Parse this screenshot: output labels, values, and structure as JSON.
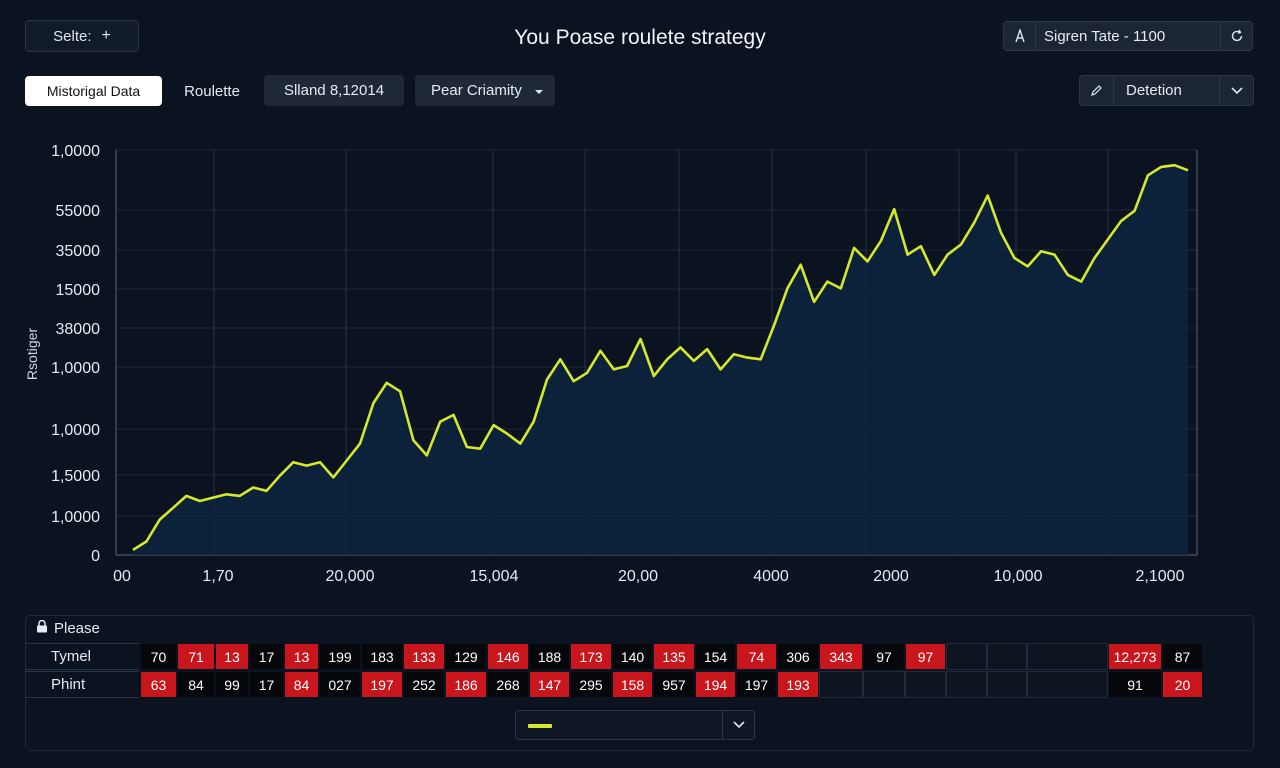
{
  "header": {
    "select_label": "Selte:",
    "select_icon": "plus-icon",
    "title": "You Poase roulete strategy",
    "right_label": "Sigren Tate - 1100",
    "right_left_icon": "a-icon",
    "right_right_icon": "refresh-icon"
  },
  "toolbar": {
    "tab_historical": "Mistorigal Data",
    "tab_roulette": "Roulette",
    "sland_button": "Slland 8,12014",
    "pear_dropdown": "Pear Criamity",
    "detetion_dropdown": "Detetion",
    "detetion_icon": "pencil-icon"
  },
  "chart_data": {
    "type": "area",
    "ylabel": "Rsotiger",
    "y_tick_labels": [
      "1,0000",
      "55000",
      "35000",
      "15000",
      "38000",
      "1,0000",
      "1,0000",
      "1,5000",
      "1,0000",
      "0"
    ],
    "x_tick_labels": [
      "00",
      "1,70",
      "20,000",
      "15,004",
      "20,00",
      "4000",
      "2000",
      "10,000",
      "2,1000"
    ],
    "grid": true,
    "line_color": "#d5e82a",
    "fill_color": "#0d2440",
    "series": [
      {
        "values": [
          3,
          8,
          21,
          28,
          35,
          32,
          34,
          36,
          35,
          40,
          38,
          47,
          55,
          53,
          55,
          46,
          56,
          66,
          90,
          102,
          97,
          68,
          59,
          79,
          83,
          64,
          63,
          77,
          72,
          66,
          79,
          104,
          116,
          103,
          108,
          121,
          110,
          112,
          128,
          106,
          116,
          123,
          115,
          122,
          110,
          119,
          117,
          116,
          136,
          158,
          172,
          150,
          162,
          158,
          182,
          174,
          186,
          205,
          178,
          183,
          166,
          178,
          184,
          197,
          213,
          191,
          176,
          171,
          180,
          178,
          166,
          162,
          176,
          187,
          198,
          204,
          225,
          230,
          231,
          228
        ]
      }
    ]
  },
  "panel": {
    "title": "Please",
    "title_icon": "lock-icon",
    "rows": [
      {
        "label": "Tymel",
        "cells": [
          {
            "v": "70",
            "c": "black"
          },
          {
            "v": "71",
            "c": "red"
          },
          {
            "v": "13",
            "c": "red"
          },
          {
            "v": "17",
            "c": "black"
          },
          {
            "v": "13",
            "c": "red"
          },
          {
            "v": "199",
            "c": "black"
          },
          {
            "v": "183",
            "c": "black"
          },
          {
            "v": "133",
            "c": "red"
          },
          {
            "v": "129",
            "c": "black"
          },
          {
            "v": "146",
            "c": "red"
          },
          {
            "v": "188",
            "c": "black"
          },
          {
            "v": "173",
            "c": "red"
          },
          {
            "v": "140",
            "c": "black"
          },
          {
            "v": "135",
            "c": "red"
          },
          {
            "v": "154",
            "c": "black"
          },
          {
            "v": "74",
            "c": "red"
          },
          {
            "v": "306",
            "c": "black"
          },
          {
            "v": "343",
            "c": "red"
          },
          {
            "v": "97",
            "c": "black"
          },
          {
            "v": "97",
            "c": "red"
          },
          {
            "v": "",
            "c": "empty"
          },
          {
            "v": "",
            "c": "empty"
          },
          {
            "v": "",
            "c": "empty"
          },
          {
            "v": "12,273",
            "c": "red"
          },
          {
            "v": "87",
            "c": "black"
          }
        ]
      },
      {
        "label": "Phint",
        "cells": [
          {
            "v": "63",
            "c": "red"
          },
          {
            "v": "84",
            "c": "black"
          },
          {
            "v": "99",
            "c": "black"
          },
          {
            "v": "17",
            "c": "black"
          },
          {
            "v": "84",
            "c": "red"
          },
          {
            "v": "027",
            "c": "black"
          },
          {
            "v": "197",
            "c": "red"
          },
          {
            "v": "252",
            "c": "black"
          },
          {
            "v": "186",
            "c": "red"
          },
          {
            "v": "268",
            "c": "black"
          },
          {
            "v": "147",
            "c": "red"
          },
          {
            "v": "295",
            "c": "black"
          },
          {
            "v": "158",
            "c": "red"
          },
          {
            "v": "957",
            "c": "black"
          },
          {
            "v": "194",
            "c": "red"
          },
          {
            "v": "197",
            "c": "black"
          },
          {
            "v": "193",
            "c": "red"
          },
          {
            "v": "",
            "c": "empty"
          },
          {
            "v": "",
            "c": "empty"
          },
          {
            "v": "",
            "c": "empty"
          },
          {
            "v": "",
            "c": "empty"
          },
          {
            "v": "",
            "c": "empty"
          },
          {
            "v": "",
            "c": "empty"
          },
          {
            "v": "91",
            "c": "black"
          },
          {
            "v": "20",
            "c": "red"
          }
        ]
      }
    ],
    "legend_dropdown_icon": "chevron-down-icon"
  }
}
